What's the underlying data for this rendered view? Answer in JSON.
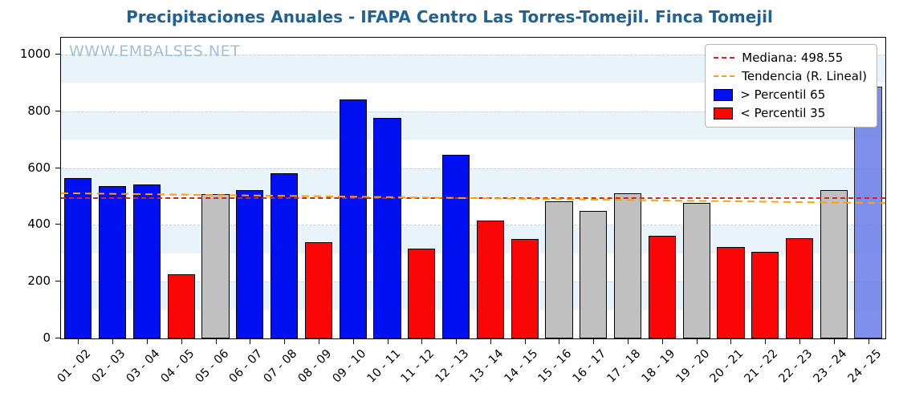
{
  "title": "Precipitaciones Anuales - IFAPA Centro Las Torres-Tomejil. Finca Tomejil",
  "watermark": "WWW.EMBALSES.NET",
  "legend": {
    "median_label": "Mediana: 498.55",
    "trend_label": "Tendencia (R. Lineal)",
    "p65_label": " > Percentil 65",
    "p35_label": " < Percentil 35"
  },
  "colors": {
    "title": "#1f6396",
    "watermark": "#a3c0d6",
    "blue": "#0010f0",
    "red": "#fb0607",
    "gray": "#c0c0c0",
    "current": "#6b7ce8",
    "median": "#e02020",
    "trend": "#ffa200"
  },
  "chart_data": {
    "type": "bar",
    "title": "Precipitaciones Anuales - IFAPA Centro Las Torres-Tomejil. Finca Tomejil",
    "xlabel": "",
    "ylabel": "",
    "ylim": [
      0,
      1060
    ],
    "yticks": [
      0,
      200,
      400,
      600,
      800,
      1000
    ],
    "grid": true,
    "legend_position": "upper right",
    "categories": [
      "01 - 02",
      "02 - 03",
      "03 - 04",
      "04 - 05",
      "05 - 06",
      "06 - 07",
      "07 - 08",
      "08 - 09",
      "09 - 10",
      "10 - 11",
      "11 - 12",
      "12 - 13",
      "13 - 14",
      "14 - 15",
      "15 - 16",
      "16 - 17",
      "17 - 18",
      "18 - 19",
      "19 - 20",
      "20 - 21",
      "21 - 22",
      "22 - 23",
      "23 - 24",
      "24 - 25"
    ],
    "values": [
      565,
      538,
      542,
      225,
      508,
      524,
      582,
      340,
      842,
      777,
      317,
      648,
      415,
      350,
      483,
      449,
      513,
      362,
      478,
      322,
      305,
      352,
      524,
      888
    ],
    "bar_colors": [
      "blue",
      "blue",
      "blue",
      "red",
      "gray",
      "blue",
      "blue",
      "red",
      "blue",
      "blue",
      "red",
      "blue",
      "red",
      "red",
      "gray",
      "gray",
      "gray",
      "red",
      "gray",
      "red",
      "red",
      "red",
      "gray",
      "current"
    ],
    "median": 498.55,
    "trend": {
      "start": 512,
      "end": 477
    }
  }
}
